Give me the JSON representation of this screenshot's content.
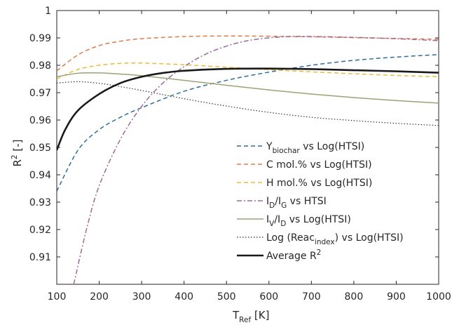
{
  "chart_data": {
    "type": "line",
    "xlabel": {
      "main": "T",
      "sub": "Ref",
      "rest": " [K]"
    },
    "ylabel": {
      "main": "R",
      "sup": "2",
      "rest": " [-]"
    },
    "xlim": [
      100,
      1000
    ],
    "ylim": [
      0.9,
      1.0
    ],
    "xticks": [
      100,
      200,
      300,
      400,
      500,
      600,
      700,
      800,
      900,
      1000
    ],
    "yticks": [
      0.91,
      0.92,
      0.93,
      0.94,
      0.95,
      0.96,
      0.97,
      0.98,
      0.99,
      1
    ],
    "ytick_labels": [
      "0.91",
      "0.92",
      "0.93",
      "0.94",
      "0.95",
      "0.96",
      "0.97",
      "0.98",
      "0.99",
      "1"
    ],
    "grid": false,
    "legend_position": "lower-right",
    "series": [
      {
        "name": {
          "pre": "Y",
          "sub": "biochar",
          "post": " vs Log(HTSI)"
        },
        "color": "#2f6e96",
        "dash": "dashed",
        "width": 1.5,
        "x": [
          100,
          150,
          200,
          250,
          300,
          400,
          500,
          600,
          700,
          800,
          900,
          1000
        ],
        "y": [
          0.934,
          0.949,
          0.9565,
          0.961,
          0.9645,
          0.9705,
          0.9745,
          0.9775,
          0.98,
          0.9818,
          0.983,
          0.9839
        ]
      },
      {
        "name": {
          "pre": "C mol.% vs Log(HTSI)"
        },
        "color": "#e07b48",
        "dash": "dashed",
        "width": 1.5,
        "x": [
          100,
          150,
          200,
          250,
          300,
          400,
          500,
          600,
          700,
          800,
          900,
          1000
        ],
        "y": [
          0.978,
          0.9838,
          0.9872,
          0.9888,
          0.9897,
          0.9905,
          0.9907,
          0.9906,
          0.9904,
          0.9901,
          0.9898,
          0.9895
        ]
      },
      {
        "name": {
          "pre": "H mol.% vs Log(HTSI)"
        },
        "color": "#e9bd3b",
        "dash": "dashed",
        "width": 1.5,
        "x": [
          100,
          150,
          200,
          250,
          300,
          400,
          500,
          600,
          700,
          800,
          900,
          1000
        ],
        "y": [
          0.975,
          0.9785,
          0.98,
          0.9807,
          0.9808,
          0.9802,
          0.9793,
          0.9784,
          0.9776,
          0.9769,
          0.9763,
          0.9758
        ]
      },
      {
        "name": {
          "pre": "I",
          "sub": "D",
          "mid": "/I",
          "sub2": "G",
          "post": " vs HTSI"
        },
        "color": "#9c6b98",
        "dash": "dashdot",
        "width": 1.5,
        "x": [
          140,
          170,
          200,
          250,
          300,
          350,
          400,
          450,
          500,
          550,
          600,
          650,
          700,
          800,
          900,
          1000
        ],
        "y": [
          0.9,
          0.92,
          0.936,
          0.953,
          0.965,
          0.9735,
          0.9795,
          0.984,
          0.987,
          0.989,
          0.99,
          0.9905,
          0.9905,
          0.9902,
          0.9897,
          0.989
        ]
      },
      {
        "name": {
          "pre": "I",
          "sub": "V",
          "mid": "/I",
          "sub2": "D",
          "post": " vs Log(HTSI)"
        },
        "color": "#9aa373",
        "dash": "solid",
        "width": 1.5,
        "x": [
          100,
          150,
          200,
          250,
          300,
          400,
          500,
          600,
          700,
          800,
          900,
          1000
        ],
        "y": [
          0.9758,
          0.9771,
          0.9772,
          0.9768,
          0.9762,
          0.9745,
          0.9727,
          0.971,
          0.9695,
          0.9682,
          0.9671,
          0.9662
        ]
      },
      {
        "name": {
          "pre": "Log (Reac",
          "sub": "index",
          "post": ") vs Log(HTSI)"
        },
        "color": "#333333",
        "dash": "dotted",
        "width": 1.2,
        "x": [
          100,
          150,
          200,
          250,
          300,
          400,
          500,
          600,
          700,
          800,
          900,
          1000
        ],
        "y": [
          0.9735,
          0.974,
          0.9734,
          0.9722,
          0.9708,
          0.9678,
          0.9651,
          0.9628,
          0.961,
          0.9598,
          0.9588,
          0.958
        ]
      },
      {
        "name": {
          "pre": "Average R",
          "sup": "2"
        },
        "color": "#1a1a1a",
        "dash": "solid",
        "width": 2.6,
        "x": [
          100,
          120,
          150,
          200,
          250,
          300,
          350,
          400,
          500,
          600,
          700,
          800,
          900,
          1000
        ],
        "y": [
          0.949,
          0.9565,
          0.9635,
          0.9695,
          0.9735,
          0.9758,
          0.9772,
          0.978,
          0.9787,
          0.9788,
          0.9786,
          0.9782,
          0.9778,
          0.9773
        ]
      }
    ]
  }
}
